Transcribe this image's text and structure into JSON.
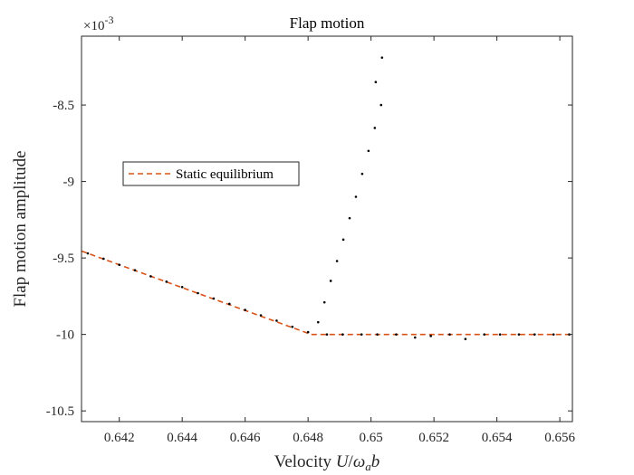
{
  "chart_data": {
    "type": "scatter",
    "title": "Flap motion",
    "xlabel": "Velocity U/ω_a b",
    "xlabel_parts": {
      "prefix": "Velocity ",
      "U": "U",
      "slash": "/",
      "omega": "ω",
      "sub": "a",
      "b": "b"
    },
    "ylabel": "Flap motion amplitude",
    "y_exponent_label": "×10",
    "y_exponent": "-3",
    "xlim": [
      0.6408,
      0.6564
    ],
    "ylim": [
      -10.57,
      -8.05
    ],
    "x_ticks": [
      0.642,
      0.644,
      0.646,
      0.648,
      0.65,
      0.652,
      0.654,
      0.656
    ],
    "x_tick_labels": [
      "0.642",
      "0.644",
      "0.646",
      "0.648",
      "0.65",
      "0.652",
      "0.654",
      "0.656"
    ],
    "y_ticks": [
      -10.5,
      -10,
      -9.5,
      -9,
      -8.5
    ],
    "y_tick_labels": [
      "-10.5",
      "-10",
      "-9.5",
      "-9",
      "-8.5"
    ],
    "grid": false,
    "legend": {
      "placement": "upper-left",
      "entries": [
        "Static equilibrium"
      ]
    },
    "series": [
      {
        "name": "Static equilibrium",
        "style": "dashed-line",
        "color": "#D95319",
        "x": [
          0.6408,
          0.6481,
          0.6564
        ],
        "y": [
          -9.455,
          -10.0,
          -10.0
        ]
      },
      {
        "style": "dots",
        "color": "#000000",
        "x": [
          0.641,
          0.6415,
          0.642,
          0.6425,
          0.643,
          0.6435,
          0.644,
          0.6445,
          0.645,
          0.6455,
          0.646,
          0.6465,
          0.647,
          0.6475,
          0.648,
          0.6486,
          0.6491,
          0.6497,
          0.6502,
          0.6508,
          0.6514,
          0.6519,
          0.6525,
          0.653,
          0.6536,
          0.6541,
          0.6547,
          0.6552,
          0.6558,
          0.6563
        ],
        "y": [
          -9.47,
          -9.505,
          -9.545,
          -9.58,
          -9.62,
          -9.655,
          -9.69,
          -9.73,
          -9.765,
          -9.8,
          -9.84,
          -9.875,
          -9.91,
          -9.95,
          -9.985,
          -10.0,
          -10.0,
          -10.0,
          -10.0,
          -10.0,
          -10.02,
          -10.01,
          -10.0,
          -10.03,
          -10.0,
          -10.0,
          -10.0,
          -10.0,
          -10.0,
          -10.0
        ]
      },
      {
        "style": "dots",
        "color": "#000000",
        "x": [
          0.64832,
          0.64852,
          0.64872,
          0.64892,
          0.64912,
          0.64932,
          0.64952,
          0.64972,
          0.64992,
          0.65012,
          0.65032
        ],
        "y": [
          -9.92,
          -9.79,
          -9.65,
          -9.52,
          -9.38,
          -9.24,
          -9.1,
          -8.95,
          -8.8,
          -8.65,
          -8.5
        ]
      },
      {
        "style": "dots",
        "color": "#000000",
        "x": [
          0.65015,
          0.65035
        ],
        "y": [
          -8.35,
          -8.19
        ]
      }
    ]
  }
}
